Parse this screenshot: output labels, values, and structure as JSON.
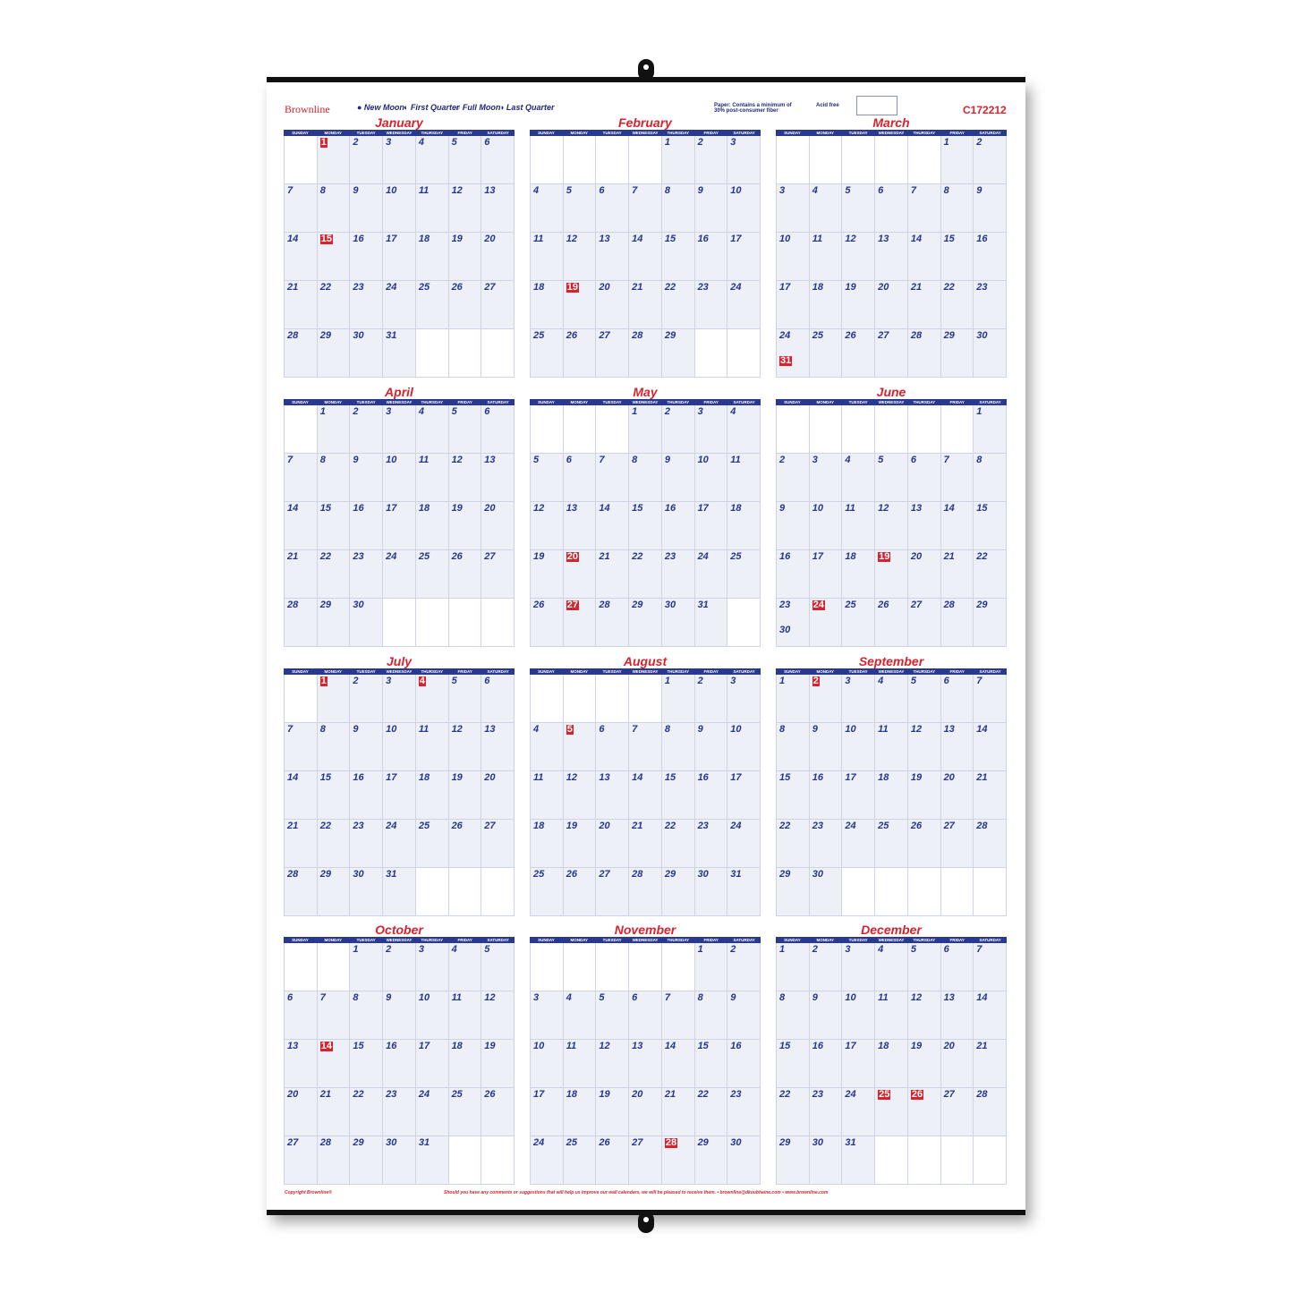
{
  "brand": "Brownline",
  "legend": [
    "● New Moon",
    "◐ First Quarter",
    "○ Full Moon",
    "◑ Last Quarter"
  ],
  "paper_note": "Paper: Contains a minimum of 30% post-consumer fiber",
  "acid_free": "Acid free",
  "product_code": "C172212",
  "weekdays": [
    "SUNDAY",
    "MONDAY",
    "TUESDAY",
    "WEDNESDAY",
    "THURSDAY",
    "FRIDAY",
    "SATURDAY"
  ],
  "months": [
    {
      "name": "January",
      "start": 1,
      "days": 31,
      "holidays": [
        1,
        15
      ]
    },
    {
      "name": "February",
      "start": 4,
      "days": 29,
      "holidays": [
        19
      ]
    },
    {
      "name": "March",
      "start": 5,
      "days": 31,
      "holidays": [
        31
      ]
    },
    {
      "name": "April",
      "start": 1,
      "days": 30,
      "holidays": []
    },
    {
      "name": "May",
      "start": 3,
      "days": 31,
      "holidays": [
        20,
        27
      ]
    },
    {
      "name": "June",
      "start": 6,
      "days": 30,
      "holidays": [
        19,
        24
      ]
    },
    {
      "name": "July",
      "start": 1,
      "days": 31,
      "holidays": [
        1,
        4
      ]
    },
    {
      "name": "August",
      "start": 4,
      "days": 31,
      "holidays": [
        5
      ]
    },
    {
      "name": "September",
      "start": 0,
      "days": 30,
      "holidays": [
        2
      ]
    },
    {
      "name": "October",
      "start": 2,
      "days": 31,
      "holidays": [
        14
      ]
    },
    {
      "name": "November",
      "start": 5,
      "days": 30,
      "holidays": [
        28
      ]
    },
    {
      "name": "December",
      "start": 0,
      "days": 31,
      "holidays": [
        25,
        26
      ]
    }
  ],
  "footer": {
    "copyright": "Copyright Brownline®",
    "comments": "Should you have any comments or suggestions that will help us improve our wall calendars, we will be pleased to receive them. • brownline@dkoubhaine.com • www.brownline.com"
  },
  "colors": {
    "accent_red": "#d7232e",
    "navy": "#2a3990"
  }
}
